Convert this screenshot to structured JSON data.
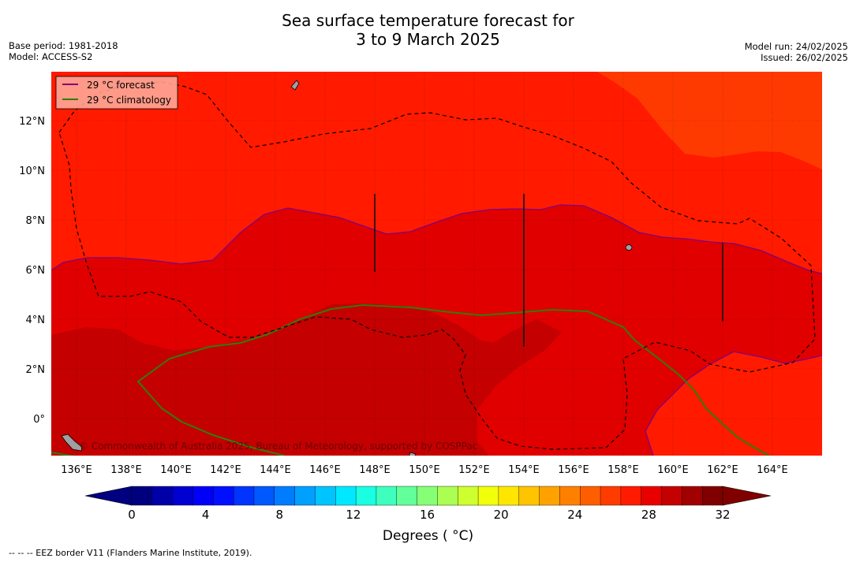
{
  "title_line1": "Sea surface temperature forecast for",
  "title_line2": "3 to 9 March 2025",
  "meta_left": {
    "base_period": "Base period: 1981-2018",
    "model": "Model: ACCESS-S2"
  },
  "meta_right": {
    "model_run": "Model run: 24/02/2025",
    "issued": "Issued: 26/02/2025"
  },
  "legend": {
    "forecast_label": "29 °C  forecast",
    "forecast_color": "#800080",
    "climatology_label": "29 °C  climatology",
    "climatology_color": "#2e7d0c"
  },
  "map": {
    "lon_ticks": [
      "136°E",
      "138°E",
      "140°E",
      "142°E",
      "144°E",
      "146°E",
      "148°E",
      "150°E",
      "152°E",
      "154°E",
      "156°E",
      "158°E",
      "160°E",
      "162°E",
      "164°E"
    ],
    "lat_ticks": [
      "12°N",
      "10°N",
      "8°N",
      "6°N",
      "4°N",
      "2°N",
      "0°"
    ],
    "watermark": "© Commonwealth of Australia 2025, Bureau of Meteorology, supported by COSPPac",
    "colors": {
      "warmest": "#c40000",
      "warm": "#e00000",
      "mid": "#ff1a00",
      "cooler": "#ff3a00",
      "eez": "#000000",
      "land": "#a0a0a0"
    }
  },
  "colorbar": {
    "tick_labels": [
      "0",
      "4",
      "8",
      "12",
      "16",
      "20",
      "24",
      "28",
      "32"
    ],
    "colors": [
      "#00007f",
      "#0000a8",
      "#0000d0",
      "#0000f8",
      "#0010ff",
      "#0034ff",
      "#0058ff",
      "#007cff",
      "#00a0ff",
      "#00c4ff",
      "#00e8ff",
      "#1affe2",
      "#3effbe",
      "#62ff9a",
      "#86ff76",
      "#aaff52",
      "#ceff2e",
      "#f2ff0a",
      "#ffe600",
      "#ffc400",
      "#ffa200",
      "#ff8000",
      "#ff5e00",
      "#ff3c00",
      "#ff1a00",
      "#e80000",
      "#c40000",
      "#a00000",
      "#7f0000"
    ],
    "under_color": "#000080",
    "over_color": "#800000",
    "label": "Degrees ( °C)"
  },
  "footnote": "--  --  -- EEZ border V11 (Flanders Marine Institute, 2019)."
}
